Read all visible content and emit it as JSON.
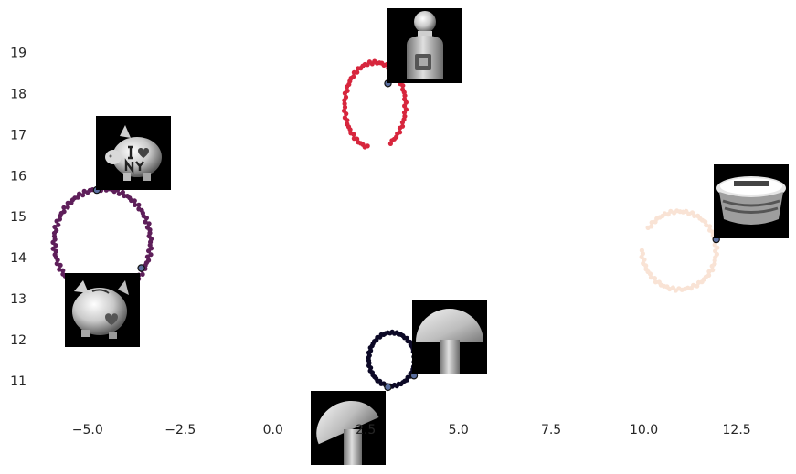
{
  "chart_data": {
    "type": "scatter",
    "title": "",
    "xlabel": "",
    "ylabel": "",
    "xlim": [
      -6.35,
      14.1
    ],
    "ylim": [
      10.2,
      20.1
    ],
    "grid": false,
    "legend": "none",
    "x_ticks": [
      -5.0,
      -2.5,
      0.0,
      2.5,
      5.0,
      7.5,
      10.0,
      12.5
    ],
    "x_tick_labels": [
      "−5.0",
      "−2.5",
      "0.0",
      "2.5",
      "5.0",
      "7.5",
      "10.0",
      "12.5"
    ],
    "y_ticks": [
      11,
      12,
      13,
      14,
      15,
      16,
      17,
      18,
      19
    ],
    "y_tick_labels": [
      "11",
      "12",
      "13",
      "14",
      "15",
      "16",
      "17",
      "18",
      "19"
    ],
    "series": [
      {
        "color": "#5e1f5a",
        "center": [
          -4.6,
          14.4
        ],
        "radius": [
          1.3,
          1.3
        ],
        "count": 110,
        "start_deg": 10,
        "gap_deg": 0
      },
      {
        "color": "#d7263d",
        "center": [
          2.75,
          17.73
        ],
        "radius": [
          0.82,
          1.05
        ],
        "count": 70,
        "start_deg": -60,
        "gap_deg": 40
      },
      {
        "color": "#0c0926",
        "center": [
          3.2,
          11.55
        ],
        "radius": [
          0.62,
          0.65
        ],
        "count": 65,
        "start_deg": 0,
        "gap_deg": 0
      },
      {
        "color": "#f9e3d5",
        "center": [
          10.95,
          14.2
        ],
        "radius": [
          1.0,
          0.95
        ],
        "count": 70,
        "start_deg": 180,
        "gap_deg": 30
      }
    ],
    "highlighted_points": [
      {
        "x": -4.75,
        "y": 15.67,
        "thumbnail": "piggy-bank-i-love-ny"
      },
      {
        "x": -3.55,
        "y": 13.77,
        "thumbnail": "piggy-bank-spotted"
      },
      {
        "x": 3.1,
        "y": 18.27,
        "thumbnail": "bottle-figure"
      },
      {
        "x": 3.8,
        "y": 11.15,
        "thumbnail": "wooden-mushroom"
      },
      {
        "x": 3.1,
        "y": 10.87,
        "thumbnail": "wooden-mushroom-tilted"
      },
      {
        "x": 11.95,
        "y": 14.47,
        "thumbnail": "plastic-tub"
      }
    ],
    "highlight_color": "#5b6fa0"
  }
}
